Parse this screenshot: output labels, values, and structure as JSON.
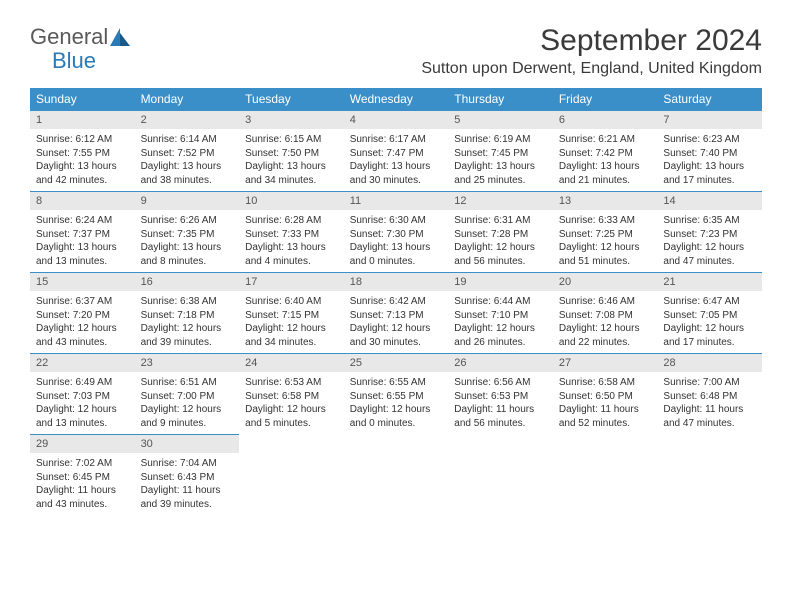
{
  "logo": {
    "text_1": "General",
    "text_2": "Blue",
    "color_general": "#5a5a5a",
    "color_blue": "#2a7ab8"
  },
  "title": "September 2024",
  "location": "Sutton upon Derwent, England, United Kingdom",
  "colors": {
    "header_bg": "#3b8fc9",
    "header_text": "#ffffff",
    "daynum_bg": "#e8e8e8",
    "daynum_text": "#555555",
    "border": "#3b8fc9",
    "text": "#333333",
    "bg": "#ffffff"
  },
  "weekdays": [
    "Sunday",
    "Monday",
    "Tuesday",
    "Wednesday",
    "Thursday",
    "Friday",
    "Saturday"
  ],
  "days": [
    {
      "num": "1",
      "sunrise": "Sunrise: 6:12 AM",
      "sunset": "Sunset: 7:55 PM",
      "daylight": "Daylight: 13 hours and 42 minutes."
    },
    {
      "num": "2",
      "sunrise": "Sunrise: 6:14 AM",
      "sunset": "Sunset: 7:52 PM",
      "daylight": "Daylight: 13 hours and 38 minutes."
    },
    {
      "num": "3",
      "sunrise": "Sunrise: 6:15 AM",
      "sunset": "Sunset: 7:50 PM",
      "daylight": "Daylight: 13 hours and 34 minutes."
    },
    {
      "num": "4",
      "sunrise": "Sunrise: 6:17 AM",
      "sunset": "Sunset: 7:47 PM",
      "daylight": "Daylight: 13 hours and 30 minutes."
    },
    {
      "num": "5",
      "sunrise": "Sunrise: 6:19 AM",
      "sunset": "Sunset: 7:45 PM",
      "daylight": "Daylight: 13 hours and 25 minutes."
    },
    {
      "num": "6",
      "sunrise": "Sunrise: 6:21 AM",
      "sunset": "Sunset: 7:42 PM",
      "daylight": "Daylight: 13 hours and 21 minutes."
    },
    {
      "num": "7",
      "sunrise": "Sunrise: 6:23 AM",
      "sunset": "Sunset: 7:40 PM",
      "daylight": "Daylight: 13 hours and 17 minutes."
    },
    {
      "num": "8",
      "sunrise": "Sunrise: 6:24 AM",
      "sunset": "Sunset: 7:37 PM",
      "daylight": "Daylight: 13 hours and 13 minutes."
    },
    {
      "num": "9",
      "sunrise": "Sunrise: 6:26 AM",
      "sunset": "Sunset: 7:35 PM",
      "daylight": "Daylight: 13 hours and 8 minutes."
    },
    {
      "num": "10",
      "sunrise": "Sunrise: 6:28 AM",
      "sunset": "Sunset: 7:33 PM",
      "daylight": "Daylight: 13 hours and 4 minutes."
    },
    {
      "num": "11",
      "sunrise": "Sunrise: 6:30 AM",
      "sunset": "Sunset: 7:30 PM",
      "daylight": "Daylight: 13 hours and 0 minutes."
    },
    {
      "num": "12",
      "sunrise": "Sunrise: 6:31 AM",
      "sunset": "Sunset: 7:28 PM",
      "daylight": "Daylight: 12 hours and 56 minutes."
    },
    {
      "num": "13",
      "sunrise": "Sunrise: 6:33 AM",
      "sunset": "Sunset: 7:25 PM",
      "daylight": "Daylight: 12 hours and 51 minutes."
    },
    {
      "num": "14",
      "sunrise": "Sunrise: 6:35 AM",
      "sunset": "Sunset: 7:23 PM",
      "daylight": "Daylight: 12 hours and 47 minutes."
    },
    {
      "num": "15",
      "sunrise": "Sunrise: 6:37 AM",
      "sunset": "Sunset: 7:20 PM",
      "daylight": "Daylight: 12 hours and 43 minutes."
    },
    {
      "num": "16",
      "sunrise": "Sunrise: 6:38 AM",
      "sunset": "Sunset: 7:18 PM",
      "daylight": "Daylight: 12 hours and 39 minutes."
    },
    {
      "num": "17",
      "sunrise": "Sunrise: 6:40 AM",
      "sunset": "Sunset: 7:15 PM",
      "daylight": "Daylight: 12 hours and 34 minutes."
    },
    {
      "num": "18",
      "sunrise": "Sunrise: 6:42 AM",
      "sunset": "Sunset: 7:13 PM",
      "daylight": "Daylight: 12 hours and 30 minutes."
    },
    {
      "num": "19",
      "sunrise": "Sunrise: 6:44 AM",
      "sunset": "Sunset: 7:10 PM",
      "daylight": "Daylight: 12 hours and 26 minutes."
    },
    {
      "num": "20",
      "sunrise": "Sunrise: 6:46 AM",
      "sunset": "Sunset: 7:08 PM",
      "daylight": "Daylight: 12 hours and 22 minutes."
    },
    {
      "num": "21",
      "sunrise": "Sunrise: 6:47 AM",
      "sunset": "Sunset: 7:05 PM",
      "daylight": "Daylight: 12 hours and 17 minutes."
    },
    {
      "num": "22",
      "sunrise": "Sunrise: 6:49 AM",
      "sunset": "Sunset: 7:03 PM",
      "daylight": "Daylight: 12 hours and 13 minutes."
    },
    {
      "num": "23",
      "sunrise": "Sunrise: 6:51 AM",
      "sunset": "Sunset: 7:00 PM",
      "daylight": "Daylight: 12 hours and 9 minutes."
    },
    {
      "num": "24",
      "sunrise": "Sunrise: 6:53 AM",
      "sunset": "Sunset: 6:58 PM",
      "daylight": "Daylight: 12 hours and 5 minutes."
    },
    {
      "num": "25",
      "sunrise": "Sunrise: 6:55 AM",
      "sunset": "Sunset: 6:55 PM",
      "daylight": "Daylight: 12 hours and 0 minutes."
    },
    {
      "num": "26",
      "sunrise": "Sunrise: 6:56 AM",
      "sunset": "Sunset: 6:53 PM",
      "daylight": "Daylight: 11 hours and 56 minutes."
    },
    {
      "num": "27",
      "sunrise": "Sunrise: 6:58 AM",
      "sunset": "Sunset: 6:50 PM",
      "daylight": "Daylight: 11 hours and 52 minutes."
    },
    {
      "num": "28",
      "sunrise": "Sunrise: 7:00 AM",
      "sunset": "Sunset: 6:48 PM",
      "daylight": "Daylight: 11 hours and 47 minutes."
    },
    {
      "num": "29",
      "sunrise": "Sunrise: 7:02 AM",
      "sunset": "Sunset: 6:45 PM",
      "daylight": "Daylight: 11 hours and 43 minutes."
    },
    {
      "num": "30",
      "sunrise": "Sunrise: 7:04 AM",
      "sunset": "Sunset: 6:43 PM",
      "daylight": "Daylight: 11 hours and 39 minutes."
    }
  ]
}
